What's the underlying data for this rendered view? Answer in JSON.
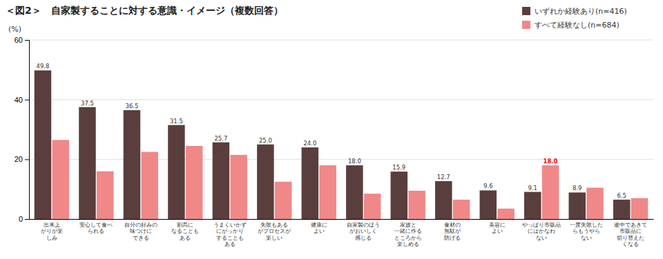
{
  "chart_data": {
    "type": "bar",
    "title": "＜図2＞　自家製することに対する意識・イメージ（複数回答）",
    "ylabel": "(%)",
    "categories": [
      "出来上\nがりが楽\nしみ",
      "安心して食べ\nられる",
      "自分の好みの\n味つけに\nできる",
      "割高に\nなることも\nある",
      "うまくいかず\nにがっかり\nすることも\nある",
      "失敗もある\nがプロセスが\n楽しい",
      "健康に\nよい",
      "自家製のほう\nがおいしく\n感じる",
      "家族と\n一緒に作る\nところから\n楽しめる",
      "食材の\n無駄が\n防げる",
      "美容に\nよい",
      "やっぱり市販品\nにはかなわ\nない",
      "一度失敗した\nらもうやら\nない",
      "途中であきて\n市販品に\n切り替えた\nくなる"
    ],
    "series": [
      {
        "name": "いずれか経験あり(n=416)",
        "color": "#5a3e3e",
        "values": [
          49.8,
          37.5,
          36.5,
          31.5,
          25.7,
          25.0,
          24.0,
          18.0,
          15.9,
          12.7,
          9.6,
          9.1,
          8.9,
          6.5
        ],
        "data_labels": true,
        "value_labels": [
          "49.8",
          "37.5",
          "36.5",
          "31.5",
          "25.7",
          "25.0",
          "24.0",
          "18.0",
          "15.9",
          "12.7",
          "9.6",
          "9.1",
          "8.9",
          "6.5"
        ]
      },
      {
        "name": "すべて経験なし(n=684)",
        "color": "#f08888",
        "values": [
          26.5,
          16.0,
          22.5,
          24.5,
          21.5,
          12.5,
          18.0,
          8.5,
          9.5,
          6.5,
          3.5,
          18.0,
          10.5,
          7.0
        ],
        "data_labels": true,
        "value_labels": [
          null,
          null,
          null,
          null,
          null,
          null,
          null,
          null,
          null,
          null,
          null,
          "18.0",
          null,
          null
        ]
      }
    ],
    "ylim": [
      0,
      60
    ],
    "yticks": [
      0,
      20,
      40,
      60
    ],
    "grid": true,
    "legend": "top-right"
  }
}
